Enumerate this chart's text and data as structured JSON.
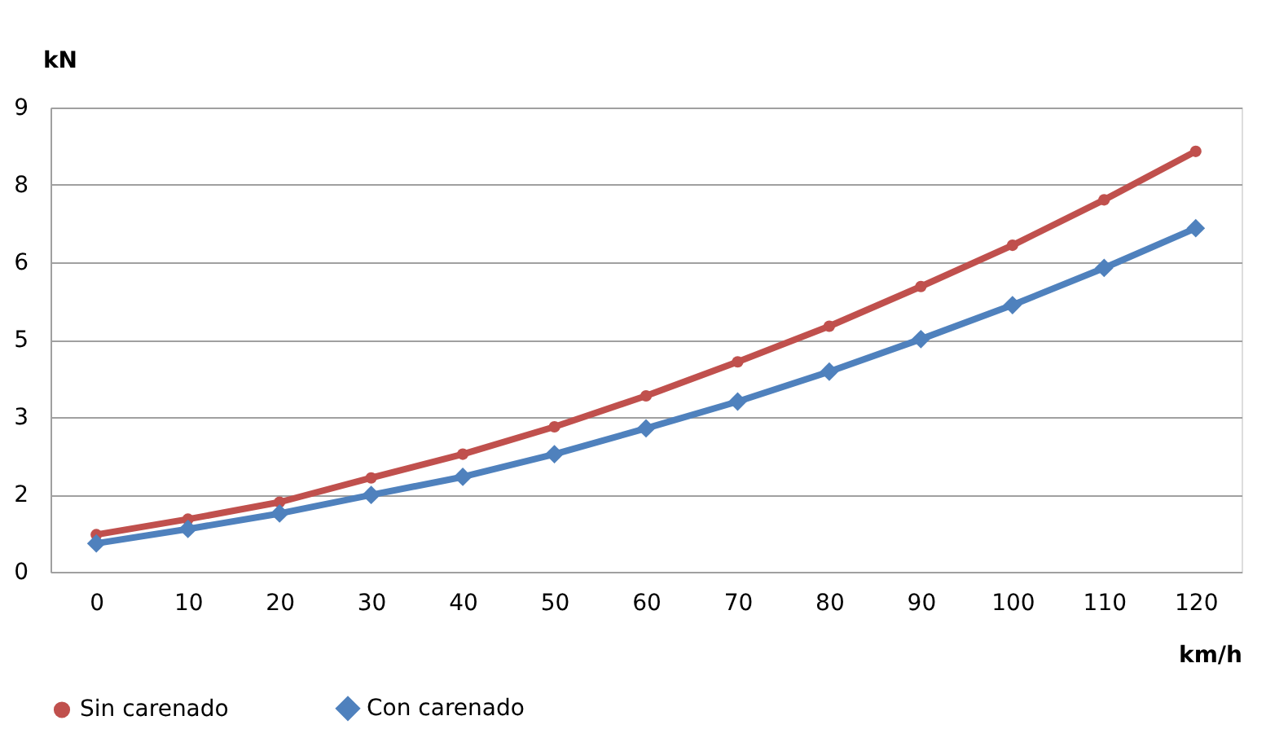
{
  "chart_data": {
    "type": "line",
    "xlabel": "km/h",
    "ylabel": "kN",
    "categories": [
      "0",
      "10",
      "20",
      "30",
      "40",
      "50",
      "60",
      "70",
      "80",
      "90",
      "100",
      "110",
      "120"
    ],
    "series": [
      {
        "name": "Sin carenado",
        "color": "#c0504d",
        "marker": "circle",
        "values": [
          0.72,
          1.02,
          1.35,
          1.82,
          2.28,
          2.81,
          3.41,
          4.07,
          4.76,
          5.53,
          6.33,
          7.21,
          8.15
        ]
      },
      {
        "name": "Con carenado",
        "color": "#4f81bd",
        "marker": "diamond",
        "values": [
          0.55,
          0.83,
          1.13,
          1.49,
          1.84,
          2.28,
          2.78,
          3.3,
          3.88,
          4.51,
          5.17,
          5.89,
          6.66
        ]
      }
    ],
    "ylim": [
      0,
      9
    ],
    "yticks": [
      0,
      {
        "value": 1.5,
        "label": "2"
      },
      3,
      {
        "value": 4.5,
        "label": "5"
      },
      6,
      {
        "value": 7.5,
        "label": "8"
      },
      9
    ],
    "grid": "y",
    "legend": "bottom",
    "line_style": "solid"
  }
}
